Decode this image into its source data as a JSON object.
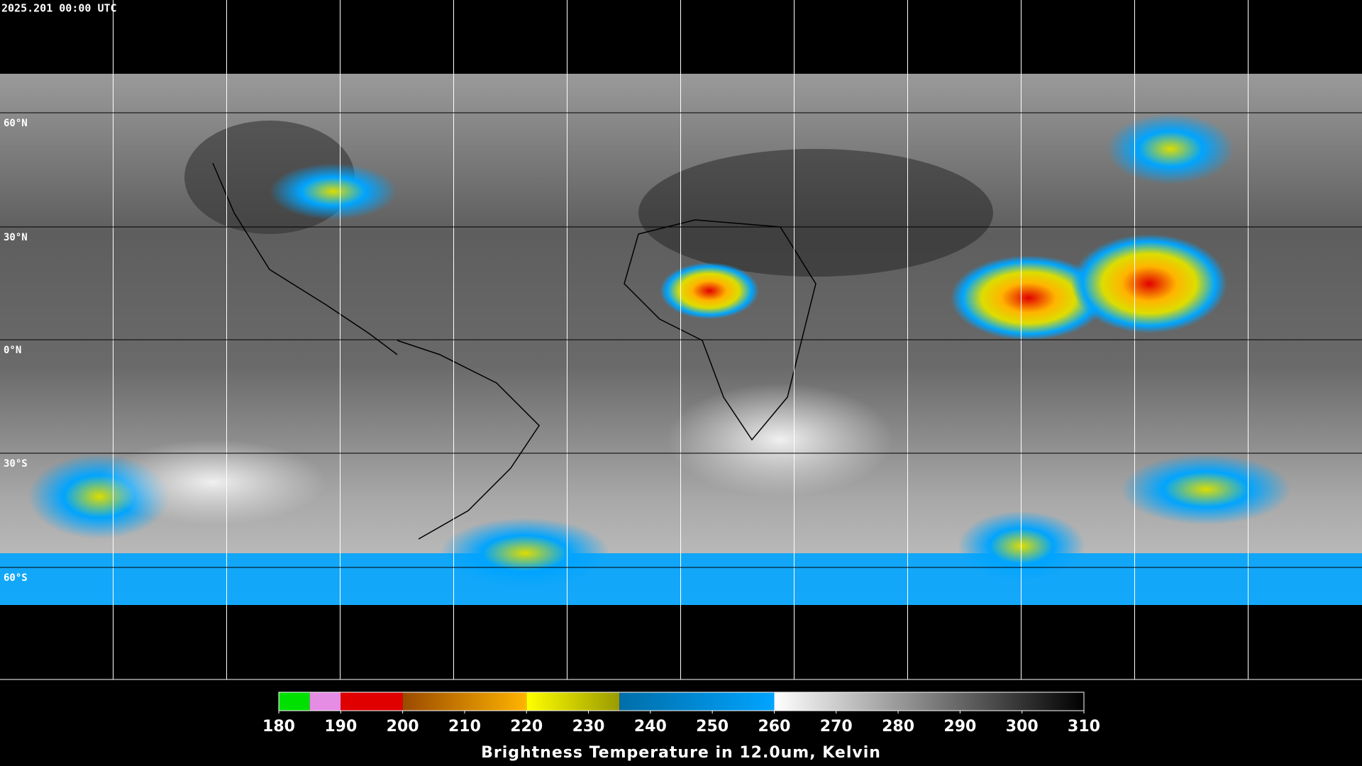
{
  "map": {
    "timestamp": "2025.201 00:00 UTC",
    "lat_labels": [
      "60°N",
      "30°N",
      "0°N",
      "30°S",
      "60°S"
    ]
  },
  "colorbar": {
    "title": "Brightness Temperature in 12.0um, Kelvin",
    "range": [
      180,
      310
    ],
    "ticks": [
      180,
      190,
      200,
      210,
      220,
      230,
      240,
      250,
      260,
      270,
      280,
      290,
      300,
      310
    ],
    "segments": [
      {
        "from": 180,
        "to": 185,
        "color_start": "#00e000",
        "color_end": "#00e000"
      },
      {
        "from": 185,
        "to": 190,
        "color_start": "#e58ce5",
        "color_end": "#e58ce5"
      },
      {
        "from": 190,
        "to": 200,
        "color_start": "#e00000",
        "color_end": "#e00000"
      },
      {
        "from": 200,
        "to": 220,
        "color_start": "#9a4a00",
        "color_end": "#ffb400"
      },
      {
        "from": 220,
        "to": 235,
        "color_start": "#ffff00",
        "color_end": "#9a9a00"
      },
      {
        "from": 235,
        "to": 260,
        "color_start": "#006ea8",
        "color_end": "#00a4ff"
      },
      {
        "from": 260,
        "to": 310,
        "color_start": "#ffffff",
        "color_end": "#000000"
      }
    ]
  }
}
